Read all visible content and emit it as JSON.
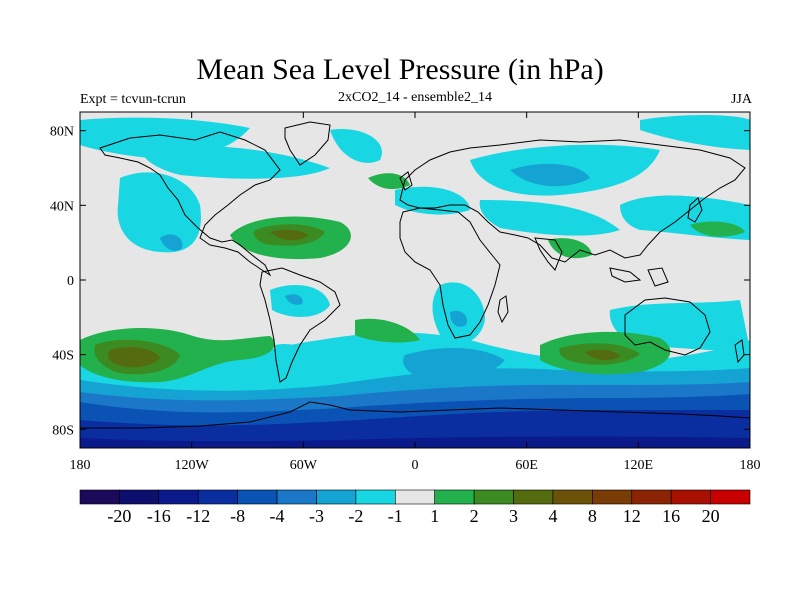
{
  "title": "Mean Sea Level Pressure (in hPa)",
  "subtitle_left": "Expt = tcvun-tcrun",
  "subtitle_center": "2xCO2_14 - ensemble2_14",
  "subtitle_right": "JJA",
  "map": {
    "lon_range": [
      -180,
      180
    ],
    "lat_range": [
      -90,
      90
    ],
    "x_ticks": [
      {
        "lon": -180,
        "label": "180"
      },
      {
        "lon": -120,
        "label": "120W"
      },
      {
        "lon": -60,
        "label": "60W"
      },
      {
        "lon": 0,
        "label": "0"
      },
      {
        "lon": 60,
        "label": "60E"
      },
      {
        "lon": 120,
        "label": "120E"
      },
      {
        "lon": 180,
        "label": "180"
      }
    ],
    "y_ticks": [
      {
        "lat": 80,
        "label": "80N"
      },
      {
        "lat": 40,
        "label": "40N"
      },
      {
        "lat": 0,
        "label": "0"
      },
      {
        "lat": -40,
        "label": "40S"
      },
      {
        "lat": -80,
        "label": "80S"
      }
    ]
  },
  "colorbar": {
    "colors": [
      "#1b0a5a",
      "#0d0f6e",
      "#0b1a8a",
      "#0a2ea0",
      "#0a52b4",
      "#1b78c8",
      "#14a3d2",
      "#18d7e3",
      "#e6e6e6",
      "#22b14c",
      "#3c8a22",
      "#556b10",
      "#6b5208",
      "#7a3c06",
      "#8a2404",
      "#a81002",
      "#c80000"
    ],
    "labels": [
      "-20",
      "-16",
      "-12",
      "-8",
      "-4",
      "-3",
      "-2",
      "-1",
      "1",
      "2",
      "3",
      "4",
      "8",
      "12",
      "16",
      "20"
    ]
  }
}
